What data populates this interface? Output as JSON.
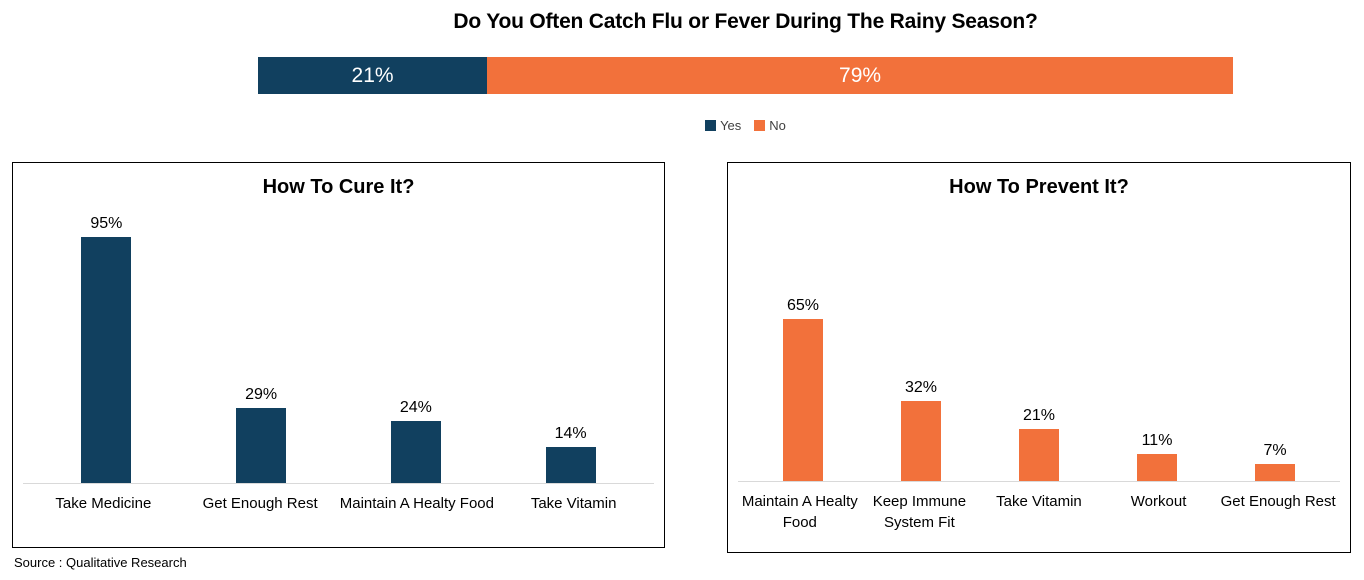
{
  "page": {
    "main_title": "Do You Often Catch Flu or Fever During The Rainy Season?",
    "source_note": "Source : Qualitative Research"
  },
  "colors": {
    "yes_navy": "#11405F",
    "no_orange": "#F2713B",
    "axis_line": "#D9D9D9",
    "legend_text": "#3F3F3F"
  },
  "chart_data": [
    {
      "id": "flu-survey",
      "type": "stacked-bar",
      "title": "Do You Often Catch Flu or Fever During The Rainy Season?",
      "value_suffix": "%",
      "legend_position": "bottom",
      "segments": [
        {
          "label": "Yes",
          "value": 21,
          "color": "#11405F"
        },
        {
          "label": "No",
          "value": 79,
          "color": "#F2713B"
        }
      ]
    },
    {
      "id": "cure",
      "type": "bar",
      "title": "How To Cure It?",
      "categories": [
        "Take Medicine",
        "Get Enough Rest",
        "Maintain A Healty Food",
        "Take Vitamin"
      ],
      "values": [
        95,
        29,
        24,
        14
      ],
      "value_suffix": "%",
      "color": "#11405F",
      "ylim": [
        0,
        100
      ],
      "grid": false,
      "data_labels": "above-bars"
    },
    {
      "id": "prevent",
      "type": "bar",
      "title": "How To Prevent It?",
      "categories": [
        "Maintain A Healty Food",
        "Keep Immune System Fit",
        "Take Vitamin",
        "Workout",
        "Get Enough Rest"
      ],
      "values": [
        65,
        32,
        21,
        11,
        7
      ],
      "value_suffix": "%",
      "color": "#F2713B",
      "ylim": [
        0,
        100
      ],
      "grid": false,
      "data_labels": "above-bars"
    }
  ]
}
